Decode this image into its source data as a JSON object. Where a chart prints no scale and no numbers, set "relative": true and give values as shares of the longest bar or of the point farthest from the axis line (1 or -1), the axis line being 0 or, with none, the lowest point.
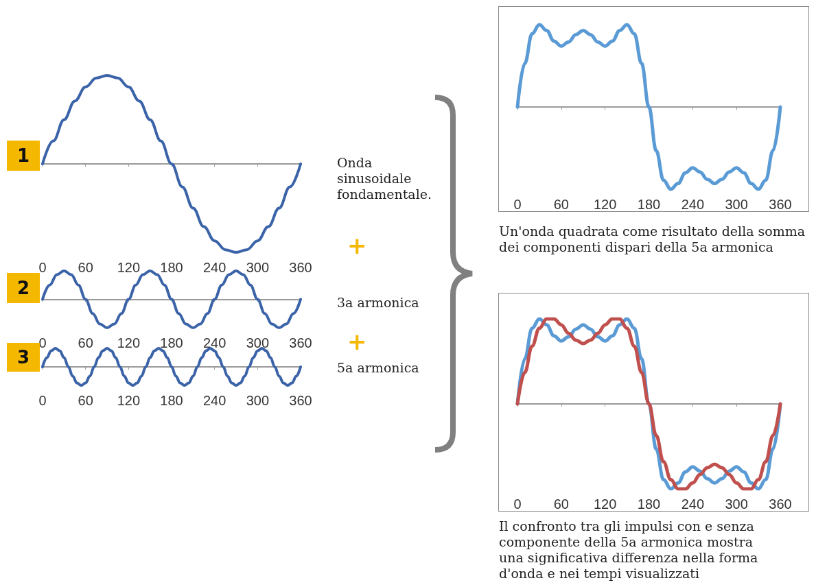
{
  "chart_data": [
    {
      "type": "line",
      "relative": true,
      "x": [
        0,
        15,
        30,
        45,
        60,
        75,
        90,
        105,
        120,
        135,
        150,
        165,
        180,
        195,
        210,
        225,
        240,
        255,
        270,
        285,
        300,
        315,
        330,
        345,
        360
      ],
      "xlim": [
        0,
        360
      ],
      "xticks": [
        0,
        60,
        120,
        180,
        240,
        300,
        360
      ],
      "annotations": [
        "1",
        "Onda sinusoidale fondamentale.",
        "+"
      ],
      "series": [
        {
          "color": "#3b63a8",
          "values": [
            0,
            0.26,
            0.5,
            0.71,
            0.87,
            0.97,
            1,
            0.97,
            0.87,
            0.71,
            0.5,
            0.26,
            0,
            -0.26,
            -0.5,
            -0.71,
            -0.87,
            -0.97,
            -1,
            -0.97,
            -0.87,
            -0.71,
            -0.5,
            -0.26,
            0
          ]
        }
      ]
    },
    {
      "type": "line",
      "relative": true,
      "x": [
        0,
        10,
        20,
        30,
        40,
        50,
        60,
        70,
        80,
        90,
        100,
        110,
        120,
        130,
        140,
        150,
        160,
        170,
        180,
        190,
        200,
        210,
        220,
        230,
        240,
        250,
        260,
        270,
        280,
        290,
        300,
        310,
        320,
        330,
        340,
        350,
        360
      ],
      "xlim": [
        0,
        360
      ],
      "xticks": [
        0,
        60,
        120,
        180,
        240,
        300,
        360
      ],
      "annotations": [
        "2",
        "3a armonica",
        "+"
      ],
      "series": [
        {
          "color": "#3b63a8",
          "values": [
            0,
            0.5,
            0.87,
            1,
            0.87,
            0.5,
            0,
            -0.5,
            -0.87,
            -1,
            -0.87,
            -0.5,
            0,
            0.5,
            0.87,
            1,
            0.87,
            0.5,
            0,
            -0.5,
            -0.87,
            -1,
            -0.87,
            -0.5,
            0,
            0.5,
            0.87,
            1,
            0.87,
            0.5,
            0,
            -0.5,
            -0.87,
            -1,
            -0.87,
            -0.5,
            0
          ]
        }
      ]
    },
    {
      "type": "line",
      "relative": true,
      "x": [
        0,
        6,
        12,
        18,
        24,
        30,
        36,
        42,
        48,
        54,
        60,
        66,
        72,
        78,
        84,
        90,
        96,
        102,
        108,
        114,
        120,
        126,
        132,
        138,
        144,
        150,
        156,
        162,
        168,
        174,
        180,
        186,
        192,
        198,
        204,
        210,
        216,
        222,
        228,
        234,
        240,
        246,
        252,
        258,
        264,
        270,
        276,
        282,
        288,
        294,
        300,
        306,
        312,
        318,
        324,
        330,
        336,
        342,
        348,
        354,
        360
      ],
      "xlim": [
        0,
        360
      ],
      "xticks": [
        0,
        60,
        120,
        180,
        240,
        300,
        360
      ],
      "annotations": [
        "3",
        "5a armonica"
      ],
      "series": [
        {
          "color": "#3b63a8",
          "values": [
            0,
            0.5,
            0.87,
            1,
            0.87,
            0.5,
            0,
            -0.5,
            -0.87,
            -1,
            -0.87,
            -0.5,
            0,
            0.5,
            0.87,
            1,
            0.87,
            0.5,
            0,
            -0.5,
            -0.87,
            -1,
            -0.87,
            -0.5,
            0,
            0.5,
            0.87,
            1,
            0.87,
            0.5,
            0,
            -0.5,
            -0.87,
            -1,
            -0.87,
            -0.5,
            0,
            0.5,
            0.87,
            1,
            0.87,
            0.5,
            0,
            -0.5,
            -0.87,
            -1,
            -0.87,
            -0.5,
            0,
            0.5,
            0.87,
            1,
            0.87,
            0.5,
            0,
            -0.5,
            -0.87,
            -1,
            -0.87,
            -0.5,
            0
          ]
        }
      ]
    },
    {
      "type": "line",
      "relative": true,
      "x": [
        0,
        10,
        20,
        30,
        40,
        50,
        60,
        70,
        80,
        90,
        100,
        110,
        120,
        130,
        140,
        150,
        160,
        170,
        180,
        190,
        200,
        210,
        220,
        230,
        240,
        250,
        260,
        270,
        280,
        290,
        300,
        310,
        320,
        330,
        340,
        350,
        360
      ],
      "xlim": [
        0,
        360
      ],
      "xticks": [
        0,
        60,
        120,
        180,
        240,
        300,
        360
      ],
      "annotations": [
        "Un'onda quadrata come risultato della somma dei componenti dispari della 5a armonica"
      ],
      "series": [
        {
          "color": "#5b9bd5",
          "values": [
            0,
            0.53,
            0.89,
            1,
            0.93,
            0.8,
            0.74,
            0.79,
            0.88,
            0.93,
            0.88,
            0.79,
            0.74,
            0.8,
            0.93,
            1,
            0.89,
            0.53,
            0,
            -0.53,
            -0.89,
            -1,
            -0.93,
            -0.8,
            -0.74,
            -0.79,
            -0.88,
            -0.93,
            -0.88,
            -0.79,
            -0.74,
            -0.8,
            -0.93,
            -1,
            -0.89,
            -0.53,
            0
          ]
        }
      ]
    },
    {
      "type": "line",
      "relative": true,
      "x": [
        0,
        10,
        20,
        30,
        40,
        50,
        60,
        70,
        80,
        90,
        100,
        110,
        120,
        130,
        140,
        150,
        160,
        170,
        180,
        190,
        200,
        210,
        220,
        230,
        240,
        250,
        260,
        270,
        280,
        290,
        300,
        310,
        320,
        330,
        340,
        350,
        360
      ],
      "xlim": [
        0,
        360
      ],
      "xticks": [
        0,
        60,
        120,
        180,
        240,
        300,
        360
      ],
      "annotations": [
        "Il confronto tra gli impulsi con e senza componente della 5a armonica mostra una significativa differenza nella forma d'onda e nei tempi visualizzati"
      ],
      "series": [
        {
          "color": "#5b9bd5",
          "values": [
            0,
            0.53,
            0.89,
            1,
            0.93,
            0.8,
            0.74,
            0.79,
            0.88,
            0.93,
            0.88,
            0.79,
            0.74,
            0.8,
            0.93,
            1,
            0.89,
            0.53,
            0,
            -0.53,
            -0.89,
            -1,
            -0.93,
            -0.8,
            -0.74,
            -0.79,
            -0.88,
            -0.93,
            -0.88,
            -0.79,
            -0.74,
            -0.8,
            -0.93,
            -1,
            -0.89,
            -0.53,
            0
          ]
        },
        {
          "color": "#c0504d",
          "values": [
            0,
            0.37,
            0.68,
            0.89,
            1,
            1,
            0.93,
            0.83,
            0.75,
            0.71,
            0.75,
            0.83,
            0.93,
            1,
            1,
            0.89,
            0.68,
            0.37,
            0,
            -0.37,
            -0.68,
            -0.89,
            -1,
            -1,
            -0.93,
            -0.83,
            -0.75,
            -0.71,
            -0.75,
            -0.83,
            -0.93,
            -1,
            -1,
            -0.89,
            -0.68,
            -0.37,
            0
          ]
        }
      ]
    }
  ]
}
